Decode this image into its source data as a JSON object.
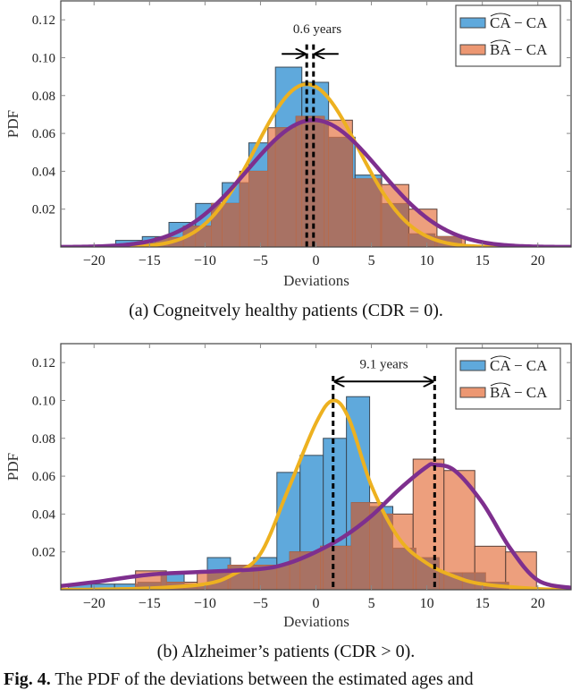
{
  "chart_data": [
    {
      "type": "bar",
      "subtype": "histogram",
      "xlabel": "Deviations",
      "ylabel": "PDF",
      "xlim": [
        -23,
        23
      ],
      "ylim": [
        0,
        0.13
      ],
      "xticks": [
        -20,
        -15,
        -10,
        -5,
        0,
        5,
        10,
        15,
        20
      ],
      "xtick_labels": [
        "−20",
        "−15",
        "−10",
        "−5",
        "0",
        "5",
        "10",
        "15",
        "20"
      ],
      "yticks": [
        0.02,
        0.04,
        0.06,
        0.08,
        0.1,
        0.12
      ],
      "ytick_labels": [
        "0.02",
        "0.04",
        "0.06",
        "0.08",
        "0.10",
        "0.12"
      ],
      "grid": false,
      "legend": {
        "placement": "top-right",
        "entries": [
          {
            "hat": "CA",
            "text": " − CA",
            "color": "#5fa9dc"
          },
          {
            "hat": "BA",
            "text": " − CA",
            "color": "#ec9772"
          }
        ]
      },
      "series": [
        {
          "color": "#5fa9dc",
          "bins": [
            [
              -18.05,
              -15.65,
              0.0035
            ],
            [
              -15.65,
              -13.25,
              0.0055
            ],
            [
              -13.25,
              -10.85,
              0.013
            ],
            [
              -10.85,
              -8.45,
              0.023
            ],
            [
              -8.45,
              -6.05,
              0.034
            ],
            [
              -6.05,
              -3.65,
              0.055
            ],
            [
              -3.65,
              -1.27,
              0.095
            ],
            [
              -1.27,
              1.14,
              0.087
            ],
            [
              1.14,
              3.53,
              0.058
            ],
            [
              3.53,
              5.93,
              0.038
            ],
            [
              5.93,
              8.33,
              0.023
            ],
            [
              8.33,
              10.73,
              0.007
            ],
            [
              10.73,
              13.13,
              0.0055
            ]
          ]
        },
        {
          "color": "#ec9772",
          "bins": [
            [
              -17.03,
              -14.49,
              0.002
            ],
            [
              -14.49,
              -11.95,
              0.005
            ],
            [
              -11.95,
              -9.41,
              0.011
            ],
            [
              -9.41,
              -6.87,
              0.023
            ],
            [
              -6.87,
              -4.33,
              0.04
            ],
            [
              -4.33,
              -1.79,
              0.063
            ],
            [
              -1.79,
              0.75,
              0.069
            ],
            [
              0.75,
              3.29,
              0.067
            ],
            [
              3.29,
              5.83,
              0.036
            ],
            [
              5.83,
              8.37,
              0.033
            ],
            [
              8.37,
              10.91,
              0.02
            ],
            [
              10.91,
              13.45,
              0.0055
            ]
          ]
        }
      ],
      "curves": [
        {
          "color": "#edb120",
          "kind": "gaussian",
          "mean": -0.83,
          "std": 4.64
        },
        {
          "color": "#7e2f8e",
          "kind": "gaussian",
          "mean": -0.22,
          "std": 5.95
        }
      ],
      "annotation": {
        "text": "0.6 years",
        "x": [
          -0.83,
          -0.22
        ],
        "style": "inward-arrows"
      },
      "caption": "(a) Cogneitvely healthy patients (CDR = 0)."
    },
    {
      "type": "bar",
      "subtype": "histogram",
      "xlabel": "Deviations",
      "ylabel": "PDF",
      "xlim": [
        -23,
        23
      ],
      "ylim": [
        0,
        0.13
      ],
      "xticks": [
        -20,
        -15,
        -10,
        -5,
        0,
        5,
        10,
        15,
        20
      ],
      "xtick_labels": [
        "−20",
        "−15",
        "−10",
        "−5",
        "0",
        "5",
        "10",
        "15",
        "20"
      ],
      "yticks": [
        0.02,
        0.04,
        0.06,
        0.08,
        0.1,
        0.12
      ],
      "ytick_labels": [
        "0.02",
        "0.04",
        "0.06",
        "0.08",
        "0.10",
        "0.12"
      ],
      "grid": false,
      "legend": {
        "placement": "top-right",
        "entries": [
          {
            "hat": "CA",
            "text": " − CA",
            "color": "#5fa9dc"
          },
          {
            "hat": "BA",
            "text": " − CA",
            "color": "#ec9772"
          }
        ]
      },
      "series": [
        {
          "color": "#5fa9dc",
          "bins": [
            [
              -22.33,
              -20.24,
              0.003
            ],
            [
              -20.24,
              -18.15,
              0.003
            ],
            [
              -18.15,
              -16.06,
              0.003
            ],
            [
              -16.06,
              -13.97,
              0.004
            ],
            [
              -13.97,
              -11.88,
              0.009
            ],
            [
              -11.88,
              -9.79,
              0.003
            ],
            [
              -9.79,
              -7.7,
              0.017
            ],
            [
              -7.7,
              -5.61,
              0.013
            ],
            [
              -5.61,
              -3.52,
              0.017
            ],
            [
              -3.52,
              -1.43,
              0.062
            ],
            [
              -1.43,
              0.66,
              0.071
            ],
            [
              0.66,
              2.75,
              0.08
            ],
            [
              2.75,
              4.84,
              0.102
            ],
            [
              4.84,
              6.93,
              0.044
            ],
            [
              6.93,
              9.02,
              0.022
            ],
            [
              9.02,
              11.11,
              0.017
            ],
            [
              11.11,
              13.2,
              0.009
            ],
            [
              13.2,
              15.29,
              0.009
            ],
            [
              15.29,
              17.38,
              0.004
            ]
          ]
        },
        {
          "color": "#ec9772",
          "bins": [
            [
              -16.26,
              -13.48,
              0.01
            ],
            [
              -13.48,
              -10.7,
              0.004
            ],
            [
              -10.7,
              -7.92,
              0.0095
            ],
            [
              -7.92,
              -5.14,
              0.013
            ],
            [
              -5.14,
              -2.36,
              0.013
            ],
            [
              -2.36,
              0.42,
              0.02
            ],
            [
              0.42,
              3.2,
              0.023
            ],
            [
              3.2,
              5.98,
              0.046
            ],
            [
              5.98,
              8.76,
              0.04
            ],
            [
              8.76,
              11.54,
              0.069
            ],
            [
              11.54,
              14.32,
              0.063
            ],
            [
              14.32,
              17.1,
              0.023
            ],
            [
              17.1,
              19.88,
              0.02
            ]
          ]
        }
      ],
      "curves": [
        {
          "color": "#edb120",
          "kind": "points",
          "points": [
            [
              -23,
              0.0001
            ],
            [
              -20,
              0.0002
            ],
            [
              -15,
              0.0008
            ],
            [
              -10,
              0.003
            ],
            [
              -7.5,
              0.008
            ],
            [
              -5,
              0.019
            ],
            [
              -2.5,
              0.053
            ],
            [
              0,
              0.088
            ],
            [
              1.55,
              0.1
            ],
            [
              3,
              0.09
            ],
            [
              5,
              0.055
            ],
            [
              7.5,
              0.027
            ],
            [
              10,
              0.014
            ],
            [
              12.5,
              0.007
            ],
            [
              15,
              0.003
            ],
            [
              20,
              0.0005
            ],
            [
              23,
              0.0002
            ]
          ]
        },
        {
          "color": "#7e2f8e",
          "kind": "points",
          "points": [
            [
              -23,
              0.002
            ],
            [
              -20,
              0.004
            ],
            [
              -15,
              0.008
            ],
            [
              -10,
              0.0095
            ],
            [
              -5,
              0.011
            ],
            [
              -2.5,
              0.014
            ],
            [
              0,
              0.02
            ],
            [
              2.5,
              0.028
            ],
            [
              5,
              0.039
            ],
            [
              7.5,
              0.053
            ],
            [
              10,
              0.065
            ],
            [
              10.7,
              0.066
            ],
            [
              12.5,
              0.063
            ],
            [
              15,
              0.046
            ],
            [
              17.5,
              0.022
            ],
            [
              20,
              0.005
            ],
            [
              23,
              0.001
            ]
          ]
        }
      ],
      "annotation": {
        "text": "9.1 years",
        "x": [
          1.55,
          10.7
        ],
        "style": "double-arrow"
      },
      "caption": "(b) Alzheimer’s patients (CDR > 0)."
    }
  ],
  "figure_caption": {
    "label": "Fig. 4.",
    "text": "The PDF of the deviations between the estimated ages and"
  }
}
